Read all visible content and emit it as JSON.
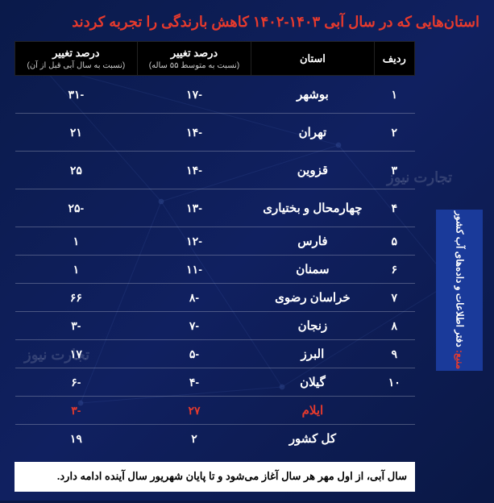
{
  "title": "استان‌هایی که در سال آبی ۱۴۰۳-۱۴۰۲ کاهش بارندگی را تجربه کردند",
  "headers": {
    "row": "ردیف",
    "province": "استان",
    "pct55": "درصد تغییر",
    "pct55_sub": "(نسبت به متوسط ۵۵ ساله)",
    "pct_prev": "درصد تغییر",
    "pct_prev_sub": "(نسبت به سال آبی قبل از آن)"
  },
  "rows": [
    {
      "n": "۱",
      "province": "بوشهر",
      "p55": "-۱۷",
      "pprev": "-۳۱",
      "tall": true
    },
    {
      "n": "۲",
      "province": "تهران",
      "p55": "-۱۴",
      "pprev": "۲۱",
      "tall": true
    },
    {
      "n": "۳",
      "province": "قزوین",
      "p55": "-۱۴",
      "pprev": "۲۵",
      "tall": true
    },
    {
      "n": "۴",
      "province": "چهارمحال و بختیاری",
      "p55": "-۱۳",
      "pprev": "-۲۵",
      "tall": true
    },
    {
      "n": "۵",
      "province": "فارس",
      "p55": "-۱۲",
      "pprev": "۱"
    },
    {
      "n": "۶",
      "province": "سمنان",
      "p55": "-۱۱",
      "pprev": "۱"
    },
    {
      "n": "۷",
      "province": "خراسان رضوی",
      "p55": "-۸",
      "pprev": "۶۶"
    },
    {
      "n": "۸",
      "province": "زنجان",
      "p55": "-۷",
      "pprev": "-۳"
    },
    {
      "n": "۹",
      "province": "البرز",
      "p55": "-۵",
      "pprev": "۱۷"
    },
    {
      "n": "۱۰",
      "province": "گیلان",
      "p55": "-۴",
      "pprev": "-۶"
    }
  ],
  "highlight": {
    "n": "",
    "province": "ایلام",
    "p55": "۲۷",
    "pprev": "-۳"
  },
  "total": {
    "n": "",
    "province": "کل کشور",
    "p55": "۲",
    "pprev": "۱۹"
  },
  "footnote": "سال آبی، از اول مهر هر سال آغاز می‌شود و تا پایان شهریور سال آینده ادامه دارد.",
  "source_label": "منبع:",
  "source_text": "دفتر اطلاعات و داده‌های آب کشور",
  "watermark": "تجارت نیوز",
  "colors": {
    "bg": "#0a1845",
    "title": "#e63a2d",
    "header_bg": "#000000",
    "text": "#ffffff",
    "highlight": "#e63a2d",
    "footnote_bg": "#ffffff",
    "source_bg": "#1a3a9a"
  }
}
